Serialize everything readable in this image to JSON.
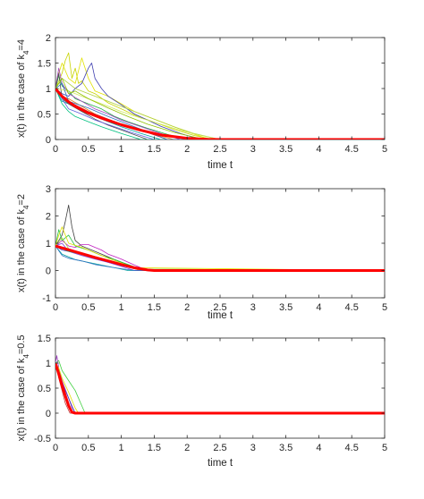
{
  "chart_data": [
    {
      "type": "line",
      "title": "",
      "xlabel": "time t",
      "ylabel_prefix": "x(t) in the case of k",
      "ylabel_sub": "4",
      "ylabel_suffix": "=4",
      "xlim": [
        0,
        5
      ],
      "ylim": [
        0,
        2
      ],
      "xticks": [
        "0",
        "0.5",
        "1",
        "1.5",
        "2",
        "2.5",
        "3",
        "3.5",
        "4",
        "4.5",
        "5"
      ],
      "yticks": [
        "0",
        "0.5",
        "1",
        "1.5",
        "2"
      ],
      "decay_end": 2.4,
      "highlight": {
        "color": "#ff0000",
        "x": [
          0,
          0.05,
          0.1,
          0.2,
          0.3,
          0.5,
          0.7,
          1.0,
          1.3,
          1.6,
          2.0,
          2.3,
          2.5,
          5
        ],
        "y": [
          1.0,
          0.92,
          0.85,
          0.74,
          0.65,
          0.52,
          0.42,
          0.29,
          0.18,
          0.09,
          0.025,
          0.005,
          0.0,
          0.0
        ]
      },
      "series": [
        {
          "color": "#c8d400",
          "x": [
            0,
            0.05,
            0.1,
            0.15,
            0.2,
            0.25,
            0.3,
            0.35,
            0.4,
            0.5,
            0.6,
            0.8,
            1.0,
            1.2,
            1.5,
            1.8,
            2.1,
            2.4,
            5
          ],
          "y": [
            1.0,
            1.15,
            1.3,
            1.55,
            1.7,
            1.2,
            1.4,
            1.1,
            1.15,
            0.95,
            0.9,
            0.72,
            0.6,
            0.48,
            0.34,
            0.2,
            0.08,
            0.0,
            0.0
          ]
        },
        {
          "color": "#e0e000",
          "x": [
            0,
            0.05,
            0.1,
            0.2,
            0.3,
            0.4,
            0.5,
            0.6,
            0.8,
            1.0,
            1.2,
            1.5,
            1.8,
            2.0,
            2.3,
            5
          ],
          "y": [
            1.0,
            1.3,
            1.5,
            1.2,
            1.1,
            1.6,
            1.2,
            0.95,
            0.85,
            0.7,
            0.55,
            0.4,
            0.25,
            0.15,
            0.02,
            0.0
          ]
        },
        {
          "color": "#4040b0",
          "x": [
            0,
            0.1,
            0.2,
            0.3,
            0.4,
            0.5,
            0.55,
            0.6,
            0.7,
            0.8,
            1.0,
            1.2,
            1.4,
            1.6,
            1.9,
            2.2,
            5
          ],
          "y": [
            1.0,
            0.9,
            0.85,
            1.0,
            1.1,
            1.4,
            1.5,
            1.2,
            1.0,
            0.85,
            0.68,
            0.5,
            0.38,
            0.26,
            0.12,
            0.0,
            0.0
          ]
        },
        {
          "color": "#20b040",
          "x": [
            0,
            0.05,
            0.1,
            0.2,
            0.3,
            0.5,
            0.7,
            0.9,
            1.1,
            1.4,
            1.7,
            2.0,
            5
          ],
          "y": [
            1.0,
            1.25,
            1.05,
            0.95,
            0.8,
            0.7,
            0.6,
            0.45,
            0.35,
            0.22,
            0.1,
            0.0,
            0.0
          ]
        },
        {
          "color": "#a040c0",
          "x": [
            0,
            0.05,
            0.1,
            0.2,
            0.4,
            0.6,
            0.8,
            1.0,
            1.3,
            1.6,
            1.9,
            5
          ],
          "y": [
            1.0,
            1.4,
            1.1,
            0.9,
            0.75,
            0.6,
            0.5,
            0.38,
            0.25,
            0.12,
            0.0,
            0.0
          ]
        },
        {
          "color": "#e08020",
          "x": [
            0,
            0.1,
            0.2,
            0.4,
            0.6,
            0.8,
            1.0,
            1.2,
            1.5,
            1.8,
            5
          ],
          "y": [
            1.0,
            0.85,
            0.8,
            0.65,
            0.5,
            0.4,
            0.3,
            0.2,
            0.1,
            0.0,
            0.0
          ]
        },
        {
          "color": "#00a0a0",
          "x": [
            0,
            0.1,
            0.2,
            0.4,
            0.6,
            0.8,
            1.0,
            1.3,
            1.6,
            5
          ],
          "y": [
            1.0,
            0.75,
            0.7,
            0.55,
            0.45,
            0.35,
            0.25,
            0.12,
            0.0,
            0.0
          ]
        },
        {
          "color": "#505050",
          "x": [
            0,
            0.05,
            0.1,
            0.2,
            0.4,
            0.6,
            0.8,
            1.1,
            1.4,
            5
          ],
          "y": [
            1.0,
            1.3,
            0.8,
            0.7,
            0.55,
            0.4,
            0.28,
            0.14,
            0.0,
            0.0
          ]
        },
        {
          "color": "#b0d040",
          "x": [
            0,
            0.1,
            0.3,
            0.5,
            0.7,
            0.9,
            1.2,
            1.5,
            1.8,
            2.1,
            2.5,
            5
          ],
          "y": [
            1.0,
            1.2,
            1.0,
            0.9,
            0.8,
            0.7,
            0.55,
            0.4,
            0.25,
            0.12,
            0.0,
            0.0
          ]
        },
        {
          "color": "#6060e0",
          "x": [
            0,
            0.1,
            0.2,
            0.4,
            0.6,
            0.9,
            1.2,
            1.5,
            5
          ],
          "y": [
            1.0,
            0.8,
            0.6,
            0.5,
            0.38,
            0.25,
            0.12,
            0.0,
            0.0
          ]
        },
        {
          "color": "#00c080",
          "x": [
            0,
            0.1,
            0.2,
            0.3,
            0.5,
            0.7,
            1.0,
            1.3,
            5
          ],
          "y": [
            1.0,
            0.7,
            0.55,
            0.45,
            0.35,
            0.25,
            0.12,
            0.0,
            0.0
          ]
        },
        {
          "color": "#d0e860",
          "x": [
            0,
            0.2,
            0.4,
            0.6,
            0.8,
            1.0,
            1.3,
            1.6,
            1.9,
            2.2,
            2.5,
            5
          ],
          "y": [
            1.0,
            0.95,
            0.85,
            0.75,
            0.65,
            0.55,
            0.42,
            0.3,
            0.18,
            0.08,
            0.0,
            0.0
          ]
        },
        {
          "color": "#c03030",
          "x": [
            0,
            0.1,
            0.3,
            0.5,
            0.8,
            1.0,
            1.3,
            1.7,
            5
          ],
          "y": [
            1.0,
            0.82,
            0.68,
            0.55,
            0.4,
            0.3,
            0.18,
            0.0,
            0.0
          ]
        },
        {
          "color": "#3070c0",
          "x": [
            0,
            0.1,
            0.2,
            0.5,
            0.8,
            1.1,
            1.4,
            1.7,
            5
          ],
          "y": [
            1.0,
            1.1,
            0.75,
            0.62,
            0.45,
            0.3,
            0.15,
            0.0,
            0.0
          ]
        },
        {
          "color": "#90c000",
          "x": [
            0,
            0.1,
            0.2,
            0.3,
            0.5,
            0.8,
            1.1,
            1.4,
            1.8,
            2.2,
            5
          ],
          "y": [
            1.0,
            1.2,
            0.9,
            0.95,
            0.8,
            0.62,
            0.45,
            0.3,
            0.14,
            0.02,
            0.0
          ]
        }
      ]
    },
    {
      "type": "line",
      "title": "",
      "xlabel": "time t",
      "ylabel_prefix": "x(t) in the case of k",
      "ylabel_sub": "4",
      "ylabel_suffix": "=2",
      "xlim": [
        0,
        5
      ],
      "ylim": [
        -1,
        3
      ],
      "xticks": [
        "0",
        "0.5",
        "1",
        "1.5",
        "2",
        "2.5",
        "3",
        "3.5",
        "4",
        "4.5",
        "5"
      ],
      "yticks": [
        "-1",
        "0",
        "1",
        "2",
        "3"
      ],
      "highlight": {
        "color": "#ff0000",
        "x": [
          0,
          0.1,
          0.2,
          0.4,
          0.6,
          0.8,
          1.0,
          1.2,
          1.4,
          1.5,
          5
        ],
        "y": [
          0.9,
          0.83,
          0.76,
          0.62,
          0.48,
          0.35,
          0.22,
          0.1,
          0.02,
          0.0,
          0.0
        ]
      },
      "series": [
        {
          "color": "#404040",
          "x": [
            0,
            0.05,
            0.1,
            0.15,
            0.2,
            0.25,
            0.3,
            0.4,
            0.5,
            0.6,
            0.8,
            1.0,
            1.2,
            1.4,
            5
          ],
          "y": [
            0.9,
            1.1,
            1.3,
            1.8,
            2.4,
            1.6,
            1.1,
            0.9,
            0.8,
            0.7,
            0.5,
            0.3,
            0.12,
            0.0,
            0.0
          ]
        },
        {
          "color": "#c020c0",
          "x": [
            0,
            0.1,
            0.2,
            0.3,
            0.4,
            0.5,
            0.6,
            0.7,
            0.8,
            1.0,
            1.2,
            1.4,
            5
          ],
          "y": [
            0.9,
            1.1,
            0.9,
            0.85,
            0.95,
            0.95,
            0.85,
            0.75,
            0.6,
            0.42,
            0.2,
            0.0,
            0.0
          ]
        },
        {
          "color": "#20c040",
          "x": [
            0,
            0.05,
            0.1,
            0.2,
            0.3,
            0.5,
            0.7,
            0.9,
            1.1,
            1.3,
            5
          ],
          "y": [
            0.9,
            1.5,
            1.1,
            1.3,
            0.9,
            0.75,
            0.55,
            0.4,
            0.22,
            0.05,
            0.0
          ]
        },
        {
          "color": "#e0e000",
          "x": [
            0,
            0.05,
            0.1,
            0.2,
            0.4,
            0.6,
            0.8,
            1.0,
            1.2,
            5
          ],
          "y": [
            0.9,
            1.3,
            1.6,
            1.0,
            0.85,
            0.65,
            0.45,
            0.28,
            0.1,
            0.0
          ]
        },
        {
          "color": "#4040c0",
          "x": [
            0,
            0.1,
            0.2,
            0.4,
            0.6,
            0.8,
            1.0,
            1.3,
            5
          ],
          "y": [
            0.9,
            0.75,
            0.7,
            0.6,
            0.45,
            0.3,
            0.18,
            0.0,
            0.0
          ]
        },
        {
          "color": "#00a0a0",
          "x": [
            0,
            0.1,
            0.2,
            0.3,
            0.5,
            0.7,
            0.9,
            1.1,
            5
          ],
          "y": [
            0.9,
            0.6,
            0.5,
            0.4,
            0.3,
            0.2,
            0.1,
            0.0,
            0.0
          ]
        },
        {
          "color": "#e08020",
          "x": [
            0,
            0.1,
            0.3,
            0.5,
            0.7,
            0.9,
            1.1,
            1.3,
            5
          ],
          "y": [
            0.9,
            0.8,
            0.65,
            0.5,
            0.38,
            0.25,
            0.12,
            0.0,
            0.0
          ]
        },
        {
          "color": "#8040e0",
          "x": [
            0,
            0.1,
            0.2,
            0.4,
            0.6,
            0.8,
            1.0,
            1.2,
            5
          ],
          "y": [
            0.9,
            1.0,
            0.7,
            0.55,
            0.42,
            0.3,
            0.15,
            0.0,
            0.0
          ]
        },
        {
          "color": "#b0d040",
          "x": [
            0,
            0.1,
            0.2,
            0.3,
            0.5,
            0.7,
            1.0,
            1.3,
            5
          ],
          "y": [
            0.9,
            1.2,
            0.8,
            0.7,
            0.58,
            0.45,
            0.25,
            0.05,
            0.0
          ]
        },
        {
          "color": "#3070c0",
          "x": [
            0,
            0.1,
            0.2,
            0.4,
            0.6,
            0.9,
            1.2,
            5
          ],
          "y": [
            0.9,
            0.55,
            0.45,
            0.35,
            0.22,
            0.1,
            0.0,
            0.0
          ]
        },
        {
          "color": "#20a060",
          "x": [
            0,
            0.2,
            0.4,
            0.6,
            0.8,
            1.1,
            1.4,
            5
          ],
          "y": [
            0.9,
            0.7,
            0.6,
            0.45,
            0.32,
            0.15,
            0.0,
            0.0
          ]
        }
      ]
    },
    {
      "type": "line",
      "title": "",
      "xlabel": "time t",
      "ylabel_prefix": "x(t) in the case of k",
      "ylabel_sub": "4",
      "ylabel_suffix": "=0.5",
      "xlim": [
        0,
        5
      ],
      "ylim": [
        -0.5,
        1.5
      ],
      "xticks": [
        "0",
        "0.5",
        "1",
        "1.5",
        "2",
        "2.5",
        "3",
        "3.5",
        "4",
        "4.5",
        "5"
      ],
      "yticks": [
        "-0.5",
        "0",
        "0.5",
        "1",
        "1.5"
      ],
      "highlight": {
        "color": "#ff0000",
        "x": [
          0,
          0.05,
          0.1,
          0.15,
          0.2,
          0.25,
          0.3,
          5
        ],
        "y": [
          1.0,
          0.78,
          0.55,
          0.35,
          0.15,
          0.02,
          0.0,
          0.0
        ]
      },
      "series": [
        {
          "color": "#40d040",
          "x": [
            0,
            0.05,
            0.1,
            0.2,
            0.3,
            0.4,
            0.45,
            5
          ],
          "y": [
            1.0,
            1.05,
            0.85,
            0.65,
            0.45,
            0.15,
            0.0,
            0.0
          ]
        },
        {
          "color": "#a040c0",
          "x": [
            0,
            0.02,
            0.05,
            0.1,
            0.2,
            0.3,
            5
          ],
          "y": [
            1.0,
            1.15,
            0.9,
            0.65,
            0.3,
            0.0,
            0.0
          ]
        },
        {
          "color": "#4040c0",
          "x": [
            0,
            0.05,
            0.1,
            0.2,
            0.25,
            0.3,
            5
          ],
          "y": [
            1.0,
            0.85,
            0.6,
            0.3,
            0.12,
            0.0,
            0.0
          ]
        },
        {
          "color": "#404040",
          "x": [
            0,
            0.05,
            0.1,
            0.15,
            0.2,
            0.25,
            5
          ],
          "y": [
            1.0,
            0.75,
            0.55,
            0.35,
            0.15,
            0.0,
            0.0
          ]
        },
        {
          "color": "#00a0a0",
          "x": [
            0,
            0.05,
            0.1,
            0.15,
            0.2,
            0.28,
            5
          ],
          "y": [
            1.0,
            0.8,
            0.5,
            0.3,
            0.12,
            0.0,
            0.0
          ]
        },
        {
          "color": "#e0e000",
          "x": [
            0,
            0.05,
            0.1,
            0.2,
            0.3,
            0.35,
            5
          ],
          "y": [
            1.0,
            0.9,
            0.7,
            0.42,
            0.1,
            0.0,
            0.0
          ]
        },
        {
          "color": "#c03030",
          "x": [
            0,
            0.05,
            0.1,
            0.15,
            0.22,
            5
          ],
          "y": [
            1.0,
            0.7,
            0.45,
            0.2,
            0.0,
            0.0
          ]
        }
      ]
    }
  ]
}
